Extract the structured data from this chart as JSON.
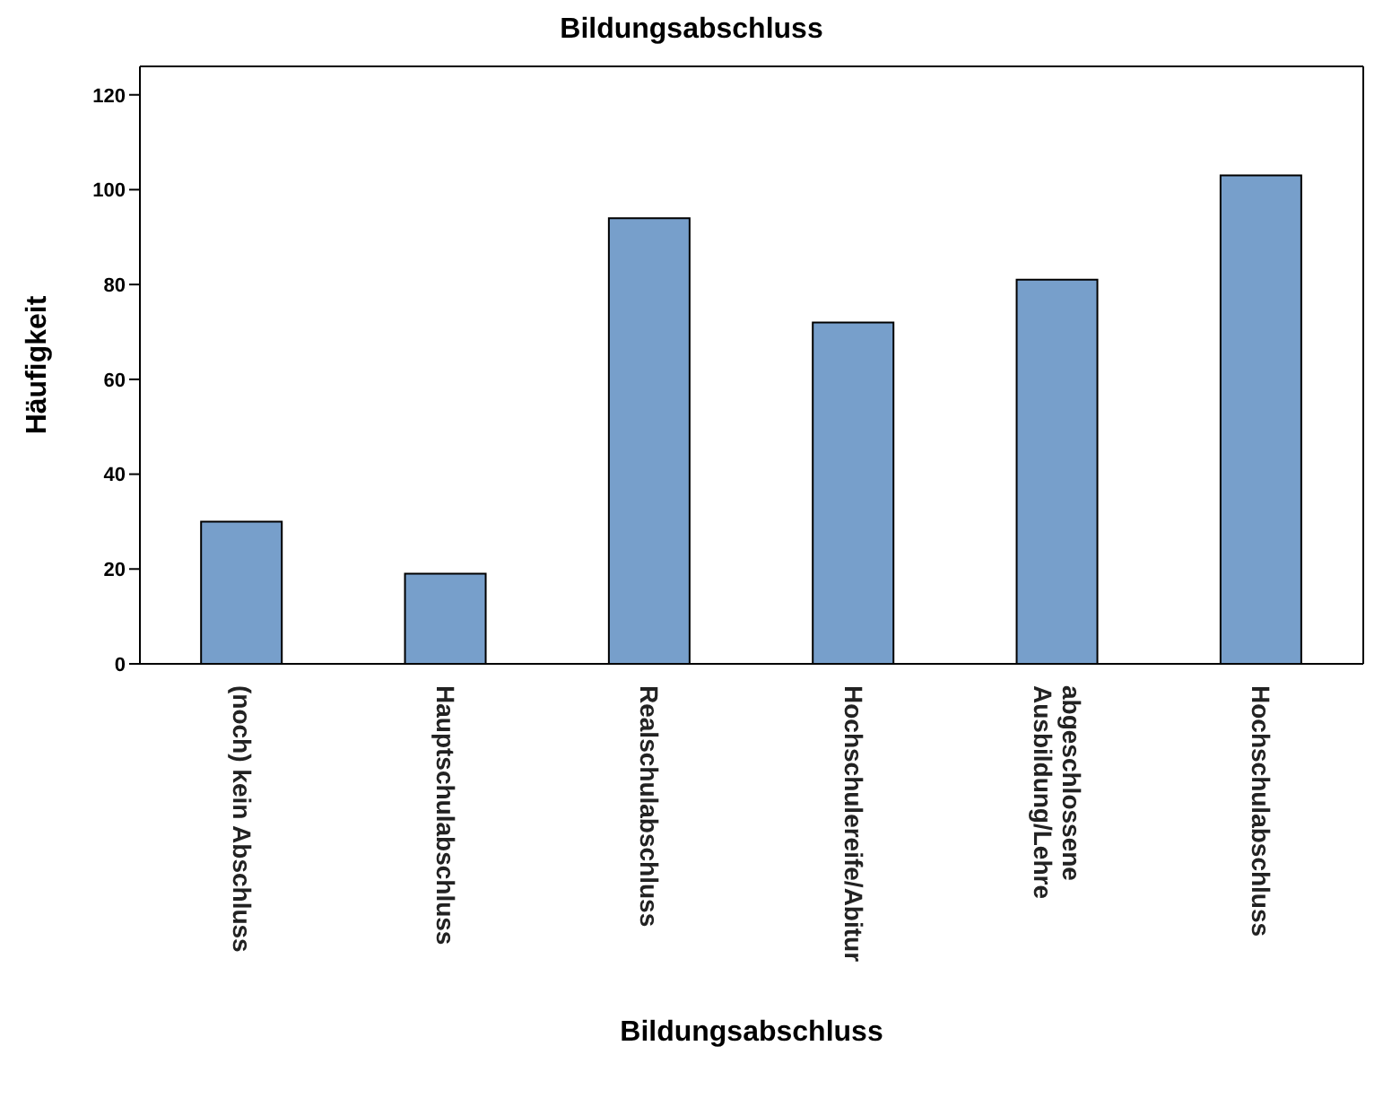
{
  "chart_data": {
    "type": "bar",
    "title": "Bildungsabschluss",
    "xlabel": "Bildungsabschluss",
    "ylabel": "Häufigkeit",
    "categories": [
      "(noch) kein Abschluss",
      "Hauptschulabschluss",
      "Realschulabschluss",
      "Hochschulereife/Abitur",
      "abgeschlossene Ausbildung/Lehre",
      "Hochschulabschluss"
    ],
    "values": [
      30,
      19,
      94,
      72,
      81,
      103
    ],
    "color": "#779fcb",
    "ylim": [
      0,
      126
    ],
    "yticks": [
      0,
      20,
      40,
      60,
      80,
      100,
      120
    ],
    "grid": false,
    "legend": false
  }
}
